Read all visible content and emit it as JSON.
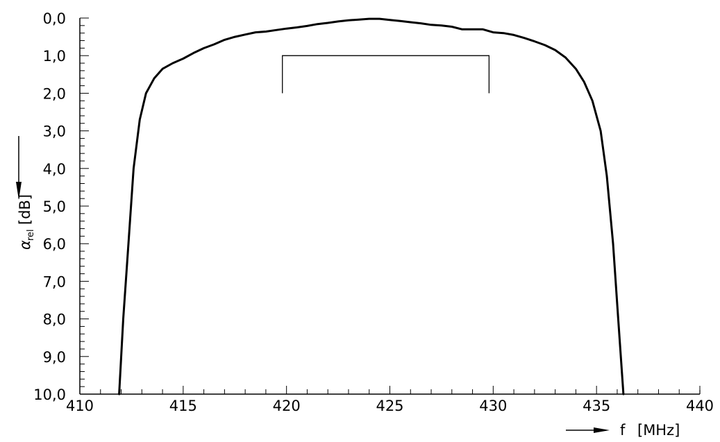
{
  "chart_data": {
    "type": "line",
    "xlabel": "f",
    "xunit": "[MHz]",
    "ylabel_symbol": "α",
    "ylabel_subscript": "rel",
    "yunit": "[dB]",
    "xlim": [
      410,
      440
    ],
    "ylim": [
      0,
      10
    ],
    "y_inverted": true,
    "x_ticks": [
      "410",
      "415",
      "420",
      "425",
      "430",
      "435",
      "440"
    ],
    "y_ticks": [
      "0,0",
      "1,0",
      "2,0",
      "3,0",
      "4,0",
      "5,0",
      "6,0",
      "7,0",
      "8,0",
      "9,0",
      "10,0"
    ],
    "grid": false,
    "series": [
      {
        "x": [
          411.9,
          412.1,
          412.35,
          412.6,
          412.9,
          413.2,
          413.6,
          414.0,
          414.5,
          415.0,
          415.5,
          416.0,
          416.5,
          417.0,
          417.5,
          418.0,
          418.5,
          419.0,
          419.5,
          420.0,
          420.5,
          421.0,
          421.5,
          422.0,
          422.5,
          423.0,
          423.5,
          424.0,
          424.5,
          425.0,
          425.5,
          426.0,
          426.5,
          427.0,
          427.5,
          428.0,
          428.5,
          429.0,
          429.5,
          430.0,
          430.5,
          431.0,
          431.5,
          432.0,
          432.5,
          433.0,
          433.5,
          434.0,
          434.4,
          434.8,
          435.2,
          435.5,
          435.8,
          436.05,
          436.3
        ],
        "y": [
          10.0,
          8.0,
          6.0,
          4.0,
          2.7,
          2.0,
          1.6,
          1.35,
          1.2,
          1.08,
          0.93,
          0.8,
          0.7,
          0.58,
          0.5,
          0.44,
          0.38,
          0.36,
          0.32,
          0.28,
          0.25,
          0.21,
          0.16,
          0.13,
          0.09,
          0.06,
          0.04,
          0.02,
          0.02,
          0.05,
          0.08,
          0.11,
          0.14,
          0.18,
          0.2,
          0.23,
          0.3,
          0.3,
          0.3,
          0.38,
          0.4,
          0.45,
          0.53,
          0.62,
          0.72,
          0.85,
          1.05,
          1.35,
          1.7,
          2.2,
          3.0,
          4.2,
          6.0,
          8.0,
          10.0
        ]
      }
    ],
    "annotation_bracket": {
      "x_start": 419.8,
      "x_end": 429.8,
      "y_top": 1.0,
      "y_bottom": 2.0
    }
  }
}
